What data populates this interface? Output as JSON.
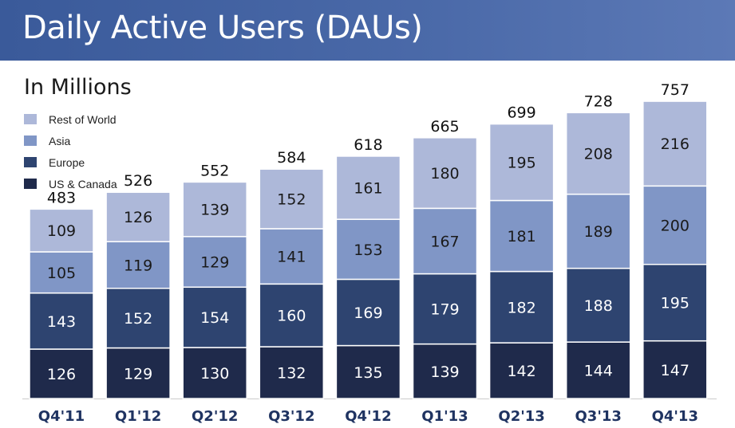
{
  "header": {
    "title": "Daily Active Users (DAUs)",
    "subtitle": "In Millions"
  },
  "colors": {
    "header_bg": "#4a67a6",
    "us_canada": "#1f2a4b",
    "europe": "#2e4470",
    "asia": "#8096c6",
    "rest_of_world": "#adb8d9",
    "axis": "#cccccc"
  },
  "legend": [
    {
      "label": "Rest of World",
      "color": "#adb8d9"
    },
    {
      "label": "Asia",
      "color": "#8096c6"
    },
    {
      "label": "Europe",
      "color": "#2e4470"
    },
    {
      "label": "US & Canada",
      "color": "#1f2a4b"
    }
  ],
  "chart_data": {
    "type": "bar",
    "stacked": true,
    "title": "Daily Active Users (DAUs)",
    "subtitle": "In Millions",
    "categories": [
      "Q4'11",
      "Q1'12",
      "Q2'12",
      "Q3'12",
      "Q4'12",
      "Q1'13",
      "Q2'13",
      "Q3'13",
      "Q4'13"
    ],
    "series": [
      {
        "name": "US & Canada",
        "color": "#1f2a4b",
        "values": [
          126,
          129,
          130,
          132,
          135,
          139,
          142,
          144,
          147
        ]
      },
      {
        "name": "Europe",
        "color": "#2e4470",
        "values": [
          143,
          152,
          154,
          160,
          169,
          179,
          182,
          188,
          195
        ]
      },
      {
        "name": "Asia",
        "color": "#8096c6",
        "values": [
          105,
          119,
          129,
          141,
          153,
          167,
          181,
          189,
          200
        ]
      },
      {
        "name": "Rest of World",
        "color": "#adb8d9",
        "values": [
          109,
          126,
          139,
          152,
          161,
          180,
          195,
          208,
          216
        ]
      }
    ],
    "totals": [
      483,
      526,
      552,
      584,
      618,
      665,
      699,
      728,
      757
    ],
    "legend_position": "top-left",
    "grid": false
  }
}
